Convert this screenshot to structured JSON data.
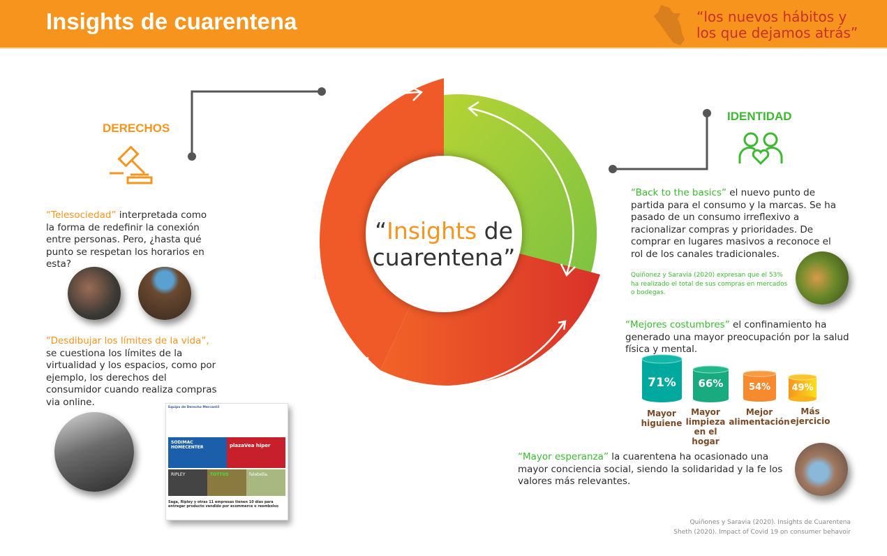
{
  "header": {
    "title": "Insights de cuarentena",
    "subtitle_line1": "“los nuevos hábitos y",
    "subtitle_line2": "los que dejamos atrás”",
    "map_icon": "peru-map-icon"
  },
  "center": {
    "quote_open": "“",
    "highlight": "Insights",
    "rest_line1": " de",
    "line2": "cuarentena”"
  },
  "colors": {
    "orange": "#f7941d",
    "ring_orange": "#f05a28",
    "ring_green": "#8dc63f",
    "green_text": "#3cb931",
    "subtitle_red": "#c8312b"
  },
  "derechos": {
    "heading": "DERECHOS",
    "icon": "gavel-icon",
    "p1_highlight": "“Telesociedad”",
    "p1_text": " interpretada como la forma de redefinir la conexión entre personas. Pero, ¿hasta qué punto se respetan los horarios en esta?",
    "p2_highlight": "“Desdibujar los límites de la vida”,",
    "p2_text": " se cuestiona los límites de la virtualidad y los espacios, como por ejemplo, los derechos del consumidor cuando realiza compras via online.",
    "post": {
      "author": "Equipo de Derecho Mercantil",
      "brands": [
        "SODIMAC HOMECENTER",
        "plazaVea hiper",
        "RIPLEY",
        "TOTTUS",
        "falabella."
      ],
      "caption": "Saga, Ripley y otras 11 empresas tienen 10 días para entregar producto vendido por ecommerce o reembolso"
    }
  },
  "identidad": {
    "heading": "IDENTIDAD",
    "icon": "people-heart-icon",
    "p1_highlight": "“Back to the basics”",
    "p1_text": " el nuevo punto de partida para el consumo y la marcas. Se ha pasado de un consumo irreflexivo a racionalizar compras y prioridades. De comprar en lugares masivos a reconoce el rol de los canales tradicionales.",
    "stat_note": "Quiñonez y Saravia (2020) expresan que el 53% ha realizado el total de sus compras en mercados o bodegas.",
    "p2_highlight": "“Mejores costumbres”",
    "p2_text": " el confinamiento ha generado una mayor preocupación por la salud física y mental.",
    "stats": [
      {
        "value": "71%",
        "label": "Mayor higuiene",
        "color": "#00a99d"
      },
      {
        "value": "66%",
        "label": "Mayor limpieza en el hogar",
        "color": "#1aaa7f"
      },
      {
        "value": "54%",
        "label": "Mejor alimentación",
        "color": "#f58a2f"
      },
      {
        "value": "49%",
        "label": "Más ejercicio",
        "color": "#f9b21b"
      }
    ],
    "p3_highlight": "“Mayor esperanza”",
    "p3_text": " la cuarentena ha ocasionado una mayor conciencia social, siendo la solidaridad y la fe los valores más relevantes."
  },
  "references": [
    "Quiñones y Saravia (2020). Insights de Cuarentena",
    "Sheth (2020). Impact of Covid 19 on consumer behavoir"
  ]
}
